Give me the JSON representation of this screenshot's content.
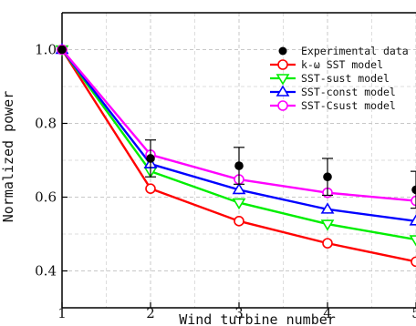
{
  "chart_data": {
    "type": "line",
    "xlabel": "Wind turbine number",
    "ylabel": "Normalized power",
    "xlim": [
      1,
      5
    ],
    "ylim": [
      0.3,
      1.1
    ],
    "x_ticks": [
      "1",
      "2",
      "3",
      "4",
      "5"
    ],
    "y_ticks": [
      "0.4",
      "0.6",
      "0.8",
      "1.0"
    ],
    "grid": true,
    "legend_position": "top-right",
    "experimental": {
      "name": "Experimental data",
      "x": [
        1,
        2,
        3,
        4,
        5
      ],
      "y": [
        1.0,
        0.705,
        0.685,
        0.655,
        0.62
      ],
      "error_upper": [
        0,
        0.05,
        0.05,
        0.05,
        0.05
      ],
      "error_lower": [
        0,
        0.05,
        0.05,
        0.05,
        0.05
      ],
      "color": "#000000"
    },
    "series": [
      {
        "name": "k-ω SST model",
        "color": "#ff0000",
        "marker": "circle",
        "x": [
          1,
          2,
          3,
          4,
          5
        ],
        "values": [
          1.0,
          0.623,
          0.535,
          0.475,
          0.425
        ]
      },
      {
        "name": "SST-sust model",
        "color": "#00ee00",
        "marker": "triangle-down",
        "x": [
          1,
          2,
          3,
          4,
          5
        ],
        "values": [
          1.0,
          0.67,
          0.585,
          0.527,
          0.485
        ]
      },
      {
        "name": "SST-const model",
        "color": "#0000ff",
        "marker": "triangle-up",
        "x": [
          1,
          2,
          3,
          4,
          5
        ],
        "values": [
          1.0,
          0.69,
          0.62,
          0.567,
          0.535
        ]
      },
      {
        "name": "SST-Csust model",
        "color": "#ff00ff",
        "marker": "circle",
        "x": [
          1,
          2,
          3,
          4,
          5
        ],
        "values": [
          1.0,
          0.715,
          0.648,
          0.612,
          0.59
        ]
      }
    ]
  }
}
